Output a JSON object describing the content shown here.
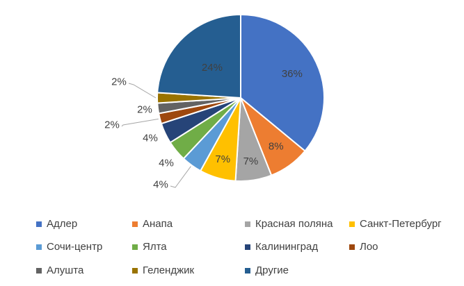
{
  "chart_data": {
    "type": "pie",
    "categories": [
      "Адлер",
      "Анапа",
      "Красная поляна",
      "Санкт-Петербург",
      "Сочи-центр",
      "Ялта",
      "Калининград",
      "Лоо",
      "Алушта",
      "Геленджик",
      "Другие"
    ],
    "values": [
      36,
      8,
      7,
      7,
      4,
      4,
      4,
      2,
      2,
      2,
      24
    ],
    "data_labels": [
      "36%",
      "8%",
      "7%",
      "7%",
      "4%",
      "4%",
      "4%",
      "2%",
      "2%",
      "2%",
      "24%"
    ],
    "colors": [
      "#4472C4",
      "#ED7D31",
      "#A5A5A5",
      "#FFC000",
      "#5B9BD5",
      "#70AD47",
      "#264478",
      "#9E480E",
      "#636363",
      "#997300",
      "#255E91"
    ],
    "title": "",
    "legend_position": "bottom"
  }
}
